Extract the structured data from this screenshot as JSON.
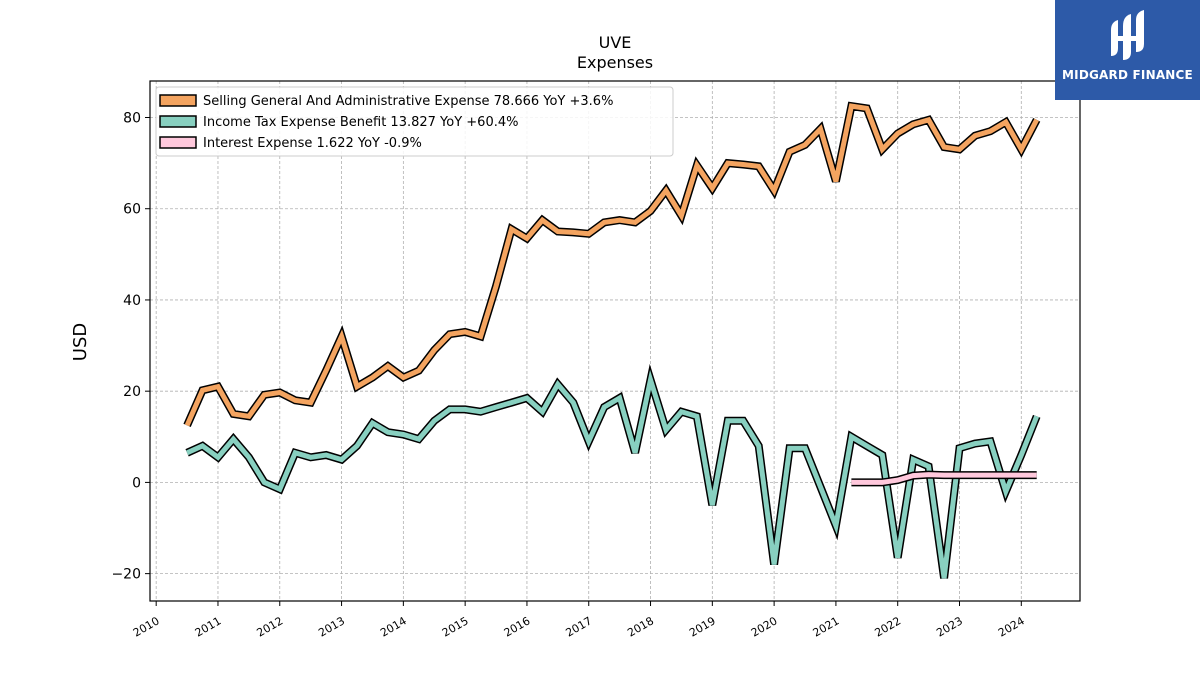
{
  "chart_data": {
    "type": "line",
    "title": "UVE",
    "subtitle": "Expenses",
    "ylabel": "USD",
    "xlabel": "",
    "xlim": [
      2009.9,
      2024.95
    ],
    "ylim": [
      -26,
      88
    ],
    "yticks": [
      -20,
      0,
      20,
      40,
      60,
      80
    ],
    "ytick_labels": [
      "−20",
      "0",
      "20",
      "40",
      "60",
      "80"
    ],
    "xticks": [
      2010,
      2011,
      2012,
      2013,
      2014,
      2015,
      2016,
      2017,
      2018,
      2019,
      2020,
      2021,
      2022,
      2023,
      2024
    ],
    "grid": true,
    "legend_position": "top-left",
    "series": [
      {
        "name": "Selling General And Administrative Expense",
        "legend_label": "Selling General And Administrative Expense  78.666 YoY +3.6%",
        "color": "#f4a460",
        "x": [
          2010.5,
          2010.75,
          2011.0,
          2011.25,
          2011.5,
          2011.75,
          2012.0,
          2012.25,
          2012.5,
          2012.75,
          2013.0,
          2013.25,
          2013.5,
          2013.75,
          2014.0,
          2014.25,
          2014.5,
          2014.75,
          2015.0,
          2015.25,
          2015.5,
          2015.75,
          2016.0,
          2016.25,
          2016.5,
          2016.75,
          2017.0,
          2017.25,
          2017.5,
          2017.75,
          2018.0,
          2018.25,
          2018.5,
          2018.75,
          2019.0,
          2019.25,
          2019.5,
          2019.75,
          2020.0,
          2020.25,
          2020.5,
          2020.75,
          2021.0,
          2021.25,
          2021.5,
          2021.75,
          2022.0,
          2022.25,
          2022.5,
          2022.75,
          2023.0,
          2023.25,
          2023.5,
          2023.75,
          2024.0,
          2024.25
        ],
        "y": [
          12.5,
          20.2,
          21.0,
          15.0,
          14.5,
          19.2,
          19.7,
          18.0,
          17.5,
          24.5,
          32.0,
          21.0,
          23.0,
          25.5,
          23.0,
          24.5,
          29.0,
          32.5,
          33.0,
          32.0,
          43.0,
          55.5,
          53.5,
          57.5,
          55.0,
          54.8,
          54.5,
          57.0,
          57.5,
          57.0,
          59.5,
          64.0,
          58.5,
          69.5,
          64.5,
          70.0,
          69.7,
          69.3,
          64.0,
          72.5,
          74.0,
          77.5,
          66.0,
          82.5,
          82.0,
          73.0,
          76.5,
          78.5,
          79.5,
          73.5,
          73.0,
          76.0,
          77.0,
          79.0,
          73.0,
          79.5
        ]
      },
      {
        "name": "Income Tax Expense Benefit",
        "legend_label": "Income Tax Expense Benefit  13.827 YoY +60.4%",
        "color": "#88d0c0",
        "x": [
          2010.5,
          2010.75,
          2011.0,
          2011.25,
          2011.5,
          2011.75,
          2012.0,
          2012.25,
          2012.5,
          2012.75,
          2013.0,
          2013.25,
          2013.5,
          2013.75,
          2014.0,
          2014.25,
          2014.5,
          2014.75,
          2015.0,
          2015.25,
          2015.5,
          2015.75,
          2016.0,
          2016.25,
          2016.5,
          2016.75,
          2017.0,
          2017.25,
          2017.5,
          2017.75,
          2018.0,
          2018.25,
          2018.5,
          2018.75,
          2019.0,
          2019.25,
          2019.5,
          2019.75,
          2020.0,
          2020.25,
          2020.5,
          2020.75,
          2021.0,
          2021.25,
          2021.5,
          2021.75,
          2022.0,
          2022.25,
          2022.5,
          2022.75,
          2023.0,
          2023.25,
          2023.5,
          2023.75,
          2024.0,
          2024.25
        ],
        "y": [
          6.5,
          8.0,
          5.5,
          9.5,
          5.5,
          0.0,
          -1.5,
          6.5,
          5.5,
          6.0,
          5.0,
          8.0,
          13.0,
          11.0,
          10.5,
          9.5,
          13.5,
          16.0,
          16.0,
          15.5,
          16.5,
          17.5,
          18.5,
          15.5,
          21.5,
          17.5,
          9.0,
          16.5,
          18.5,
          6.5,
          22.5,
          11.5,
          15.5,
          14.5,
          -5.0,
          13.5,
          13.5,
          8.0,
          -18.0,
          7.5,
          7.5,
          -1.0,
          -9.5,
          10.0,
          8.0,
          6.0,
          -16.5,
          5.0,
          3.5,
          -21.0,
          7.5,
          8.5,
          9.0,
          -2.0,
          6.0,
          14.5
        ]
      },
      {
        "name": "Interest Expense",
        "legend_label": "Interest Expense  1.622 YoY -0.9%",
        "color": "#ffc8dc",
        "x": [
          2021.25,
          2021.5,
          2021.75,
          2022.0,
          2022.25,
          2022.5,
          2022.75,
          2023.0,
          2023.25,
          2023.5,
          2023.75,
          2024.0,
          2024.25
        ],
        "y": [
          0.0,
          0.0,
          0.0,
          0.5,
          1.5,
          1.7,
          1.6,
          1.6,
          1.6,
          1.6,
          1.6,
          1.6,
          1.6
        ]
      }
    ]
  },
  "logo": {
    "text": "MIDGARD FINANCE",
    "background": "#2d5aa8"
  }
}
